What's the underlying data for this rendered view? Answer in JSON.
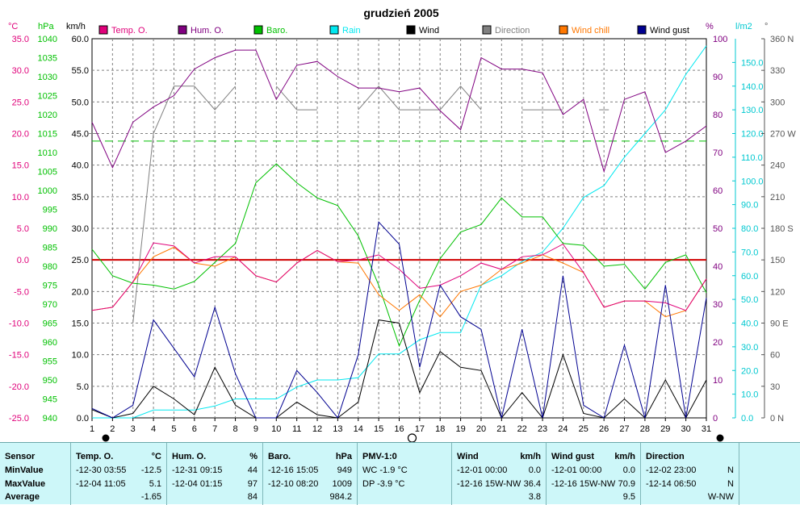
{
  "chart_data": {
    "type": "line",
    "title": "grudzień 2005",
    "x": [
      1,
      2,
      3,
      4,
      5,
      6,
      7,
      8,
      9,
      10,
      11,
      12,
      13,
      14,
      15,
      16,
      17,
      18,
      19,
      20,
      21,
      22,
      23,
      24,
      25,
      26,
      27,
      28,
      29,
      30,
      31
    ],
    "axes": {
      "temp": {
        "unit": "°C",
        "min": -25,
        "max": 35,
        "ticks": [
          "35.0",
          "30.0",
          "25.0",
          "20.0",
          "15.0",
          "10.0",
          "5.0",
          "0.0",
          "-5.0",
          "-10.0",
          "-15.0",
          "-20.0",
          "-25.0"
        ],
        "color": "#e0007a"
      },
      "baro": {
        "unit": "hPa",
        "min": 940,
        "max": 1040,
        "ticks": [
          "1040",
          "1035",
          "1030",
          "1025",
          "1020",
          "1015",
          "1010",
          "1005",
          "1000",
          "995",
          "990",
          "985",
          "980",
          "975",
          "970",
          "965",
          "960",
          "955",
          "950",
          "945",
          "940"
        ],
        "color": "#00c000"
      },
      "wind": {
        "unit": "km/h",
        "min": 0,
        "max": 60,
        "ticks": [
          "60.0",
          "55.0",
          "50.0",
          "45.0",
          "40.0",
          "35.0",
          "30.0",
          "25.0",
          "20.0",
          "15.0",
          "10.0",
          "5.0",
          "0.0"
        ],
        "color": "#000000"
      },
      "hum": {
        "unit": "%",
        "min": 0,
        "max": 100,
        "ticks": [
          "100",
          "90",
          "80",
          "70",
          "60",
          "50",
          "40",
          "30",
          "20",
          "10",
          "0"
        ],
        "color": "#800080"
      },
      "rain": {
        "unit": "l/m2",
        "min": 0,
        "max": 160,
        "ticks": [
          "150.0",
          "140.0",
          "130.0",
          "120.0",
          "110.0",
          "100.0",
          "90.0",
          "80.0",
          "70.0",
          "60.0",
          "50.0",
          "40.0",
          "30.0",
          "20.0",
          "10.0",
          "0.0"
        ],
        "color": "#00c8d0"
      },
      "dir": {
        "unit": "°",
        "min": 0,
        "max": 360,
        "ticks": [
          "360 N",
          "330",
          "300",
          "270 W",
          "240",
          "210",
          "180 S",
          "150",
          "120",
          "90 E",
          "60",
          "30",
          "0 N"
        ],
        "color": "#555555"
      }
    },
    "grid": true,
    "reference_lines": [
      {
        "axis": "temp",
        "value": 0,
        "color": "#d00000"
      },
      {
        "axis": "baro",
        "value": 1013,
        "color": "#00c000",
        "dashed": true
      }
    ],
    "moon_markers": [
      {
        "day": 1,
        "phase": "new"
      },
      {
        "day": 16,
        "phase": "full"
      },
      {
        "day": 31,
        "phase": "new"
      }
    ],
    "series": [
      {
        "name": "Temp. O.",
        "axis": "temp",
        "color": "#e0007a",
        "values": [
          -8.0,
          -7.5,
          -3.5,
          2.7,
          2.2,
          -0.5,
          0.5,
          0.5,
          -2.5,
          -3.5,
          -0.5,
          1.5,
          -0.3,
          0.0,
          0.8,
          -1.5,
          -4.5,
          -4.0,
          -2.5,
          -0.5,
          -1.5,
          0.5,
          0.8,
          2.5,
          -2.0,
          -7.5,
          -6.5,
          -6.5,
          -6.8,
          -8.0,
          -3.0
        ]
      },
      {
        "name": "Hum. O.",
        "axis": "hum",
        "color": "#800080",
        "values": [
          78,
          66,
          78,
          82,
          85,
          92,
          95,
          97,
          97,
          84,
          93,
          94,
          90,
          87,
          87,
          86,
          87,
          81,
          76,
          95,
          92,
          92,
          91,
          80,
          84,
          65,
          84,
          86,
          70,
          73,
          77
        ]
      },
      {
        "name": "Baro.",
        "axis": "baro",
        "color": "#00c000",
        "values": [
          984.5,
          977.5,
          975.5,
          975,
          974,
          976,
          981,
          986,
          1002,
          1007,
          1002,
          998,
          996,
          988,
          975,
          959,
          971,
          982,
          989,
          991,
          998,
          993,
          993,
          986,
          985.5,
          980,
          980.5,
          974,
          981,
          983,
          973
        ]
      },
      {
        "name": "Rain",
        "axis": "rain",
        "color": "#00e8f0",
        "values": [
          0,
          0,
          0,
          3.3,
          3.3,
          3.3,
          5,
          8,
          8,
          8,
          13,
          16,
          16,
          17,
          27,
          27,
          33,
          36,
          36,
          56,
          60,
          66,
          70,
          80,
          93,
          98,
          110,
          120,
          130,
          145,
          157
        ]
      },
      {
        "name": "Wind",
        "axis": "wind",
        "color": "#000000",
        "values": [
          1.3,
          0,
          0.7,
          5,
          3,
          0.5,
          8,
          2,
          0,
          0,
          2.5,
          0.5,
          0,
          2.5,
          15.5,
          15,
          4,
          10.5,
          8,
          7.5,
          0,
          4,
          0,
          10,
          0.7,
          0,
          3,
          0,
          6,
          0,
          6
        ]
      },
      {
        "name": "Direction",
        "axis": "dir",
        "color": "#808080",
        "values": [
          270,
          null,
          90,
          270,
          315,
          315,
          292.5,
          315,
          null,
          315,
          292.5,
          292.5,
          null,
          292.5,
          315,
          292.5,
          292.5,
          292.5,
          315,
          292.5,
          null,
          292.5,
          292.5,
          292.5,
          null,
          292.5,
          null,
          null,
          270,
          null,
          null
        ]
      },
      {
        "name": "Wind chill",
        "axis": "temp",
        "color": "#ff7700",
        "values": [
          -8.0,
          -7.5,
          -3.5,
          0.5,
          2.0,
          -0.5,
          -1.0,
          0.5,
          -2.5,
          -3.5,
          -0.5,
          1.5,
          -0.3,
          -0.5,
          -5.5,
          -8.0,
          -5.5,
          -9.0,
          -5.0,
          -4.0,
          -1.5,
          -0.5,
          0.8,
          -0.5,
          -2.0,
          -7.5,
          -6.5,
          -6.5,
          -9.0,
          -8.0,
          -3.0
        ]
      },
      {
        "name": "Wind gust",
        "axis": "wind",
        "color": "#000090",
        "values": [
          1.5,
          0,
          2,
          15.5,
          11,
          6.5,
          17.5,
          7,
          0,
          0,
          7.5,
          4,
          0,
          10,
          31,
          27.5,
          8,
          21,
          16,
          14,
          0,
          14,
          0,
          22.5,
          2,
          0,
          11.5,
          0,
          21,
          0,
          19
        ]
      }
    ]
  },
  "panel": {
    "sensor": {
      "title": "Sensor",
      "rows": [
        "MinValue",
        "MaxValue",
        "Average"
      ]
    },
    "temp": {
      "title": "Temp. O.",
      "unit": "°C",
      "min_ts": "-12-30  03:55",
      "min_val": "-12.5",
      "max_ts": "-12-04  11:05",
      "max_val": "5.1",
      "avg": "-1.65"
    },
    "hum": {
      "title": "Hum. O.",
      "unit": "%",
      "min_ts": "-12-31  09:15",
      "min_val": "44",
      "max_ts": "-12-04  01:15",
      "max_val": "97",
      "avg": "84"
    },
    "baro": {
      "title": "Baro.",
      "unit": "hPa",
      "min_ts": "-12-16  15:05",
      "min_val": "949",
      "max_ts": "-12-10  08:20",
      "max_val": "1009",
      "avg": "984.2"
    },
    "pmv": {
      "title": "PMV-1:0",
      "wc": "WC -1.9 °C",
      "dp": "DP -3.9 °C"
    },
    "wind": {
      "title": "Wind",
      "unit": "km/h",
      "min_ts": "-12-01  00:00",
      "min_val": "0.0",
      "max_ts": "-12-16  15W-NW",
      "max_val": "36.4",
      "avg": "3.8"
    },
    "gust": {
      "title": "Wind gust",
      "unit": "km/h",
      "min_ts": "-12-01  00:00",
      "min_val": "0.0",
      "max_ts": "-12-16  15W-NW",
      "max_val": "70.9",
      "avg": "9.5"
    },
    "dir": {
      "title": "Direction",
      "min_ts": "-12-02  23:00",
      "min_val": "N",
      "max_ts": "-12-14  06:50",
      "max_val": "N",
      "avg": "W-NW"
    }
  }
}
